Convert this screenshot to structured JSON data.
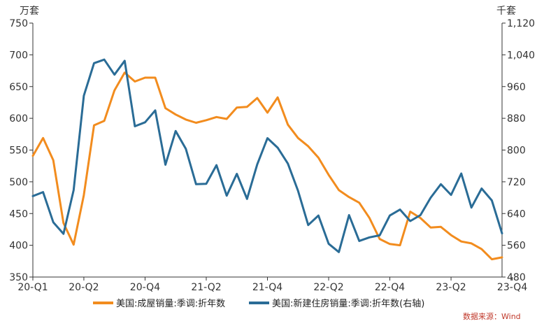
{
  "chart_data": {
    "type": "line",
    "title": "",
    "left_unit": "万套",
    "right_unit": "千套",
    "x_tick_labels": [
      "20-Q1",
      "20-Q2",
      "20-Q4",
      "21-Q2",
      "21-Q4",
      "22-Q2",
      "22-Q4",
      "23-Q2",
      "23-Q4"
    ],
    "x_tick_index": [
      0,
      5,
      11,
      17,
      23,
      29,
      35,
      41,
      47
    ],
    "left_ylim": [
      350,
      750
    ],
    "left_yticks": [
      350,
      400,
      450,
      500,
      550,
      600,
      650,
      700,
      750
    ],
    "left_ytick_labels": [
      "350",
      "400",
      "450",
      "500",
      "550",
      "600",
      "650",
      "700",
      "750"
    ],
    "right_ylim": [
      480,
      1120
    ],
    "right_yticks": [
      480,
      560,
      640,
      720,
      800,
      880,
      960,
      1040,
      1120
    ],
    "right_ytick_labels": [
      "480",
      "560",
      "640",
      "720",
      "800",
      "880",
      "960",
      "1,040",
      "1,120"
    ],
    "series": [
      {
        "name": "美国:成屋销量:季调:折年数",
        "axis": "left",
        "color": "#F28C1E",
        "values": [
          541,
          569,
          534,
          435,
          401,
          479,
          589,
          596,
          644,
          672,
          658,
          664,
          664,
          616,
          606,
          598,
          593,
          597,
          602,
          599,
          617,
          618,
          632,
          609,
          633,
          590,
          569,
          556,
          538,
          511,
          487,
          476,
          467,
          443,
          410,
          402,
          400,
          453,
          443,
          428,
          429,
          416,
          406,
          403,
          394,
          378,
          381
        ]
      },
      {
        "name": "美国:新建住房销量:季调:折年数(右轴)",
        "axis": "right",
        "color": "#2A6C96",
        "values": [
          684,
          694,
          618,
          589,
          699,
          937,
          1019,
          1028,
          990,
          1025,
          860,
          870,
          900,
          763,
          848,
          803,
          714,
          715,
          762,
          685,
          740,
          677,
          764,
          830,
          806,
          766,
          697,
          611,
          635,
          564,
          543,
          636,
          571,
          580,
          585,
          635,
          650,
          621,
          636,
          680,
          714,
          687,
          741,
          655,
          703,
          673,
          590
        ]
      }
    ],
    "legend": [
      "美国:成屋销量:季调:折年数",
      "美国:新建住房销量:季调:折年数(右轴)"
    ],
    "legend_position": "bottom",
    "source": "数据来源：Wind",
    "grid": false
  }
}
